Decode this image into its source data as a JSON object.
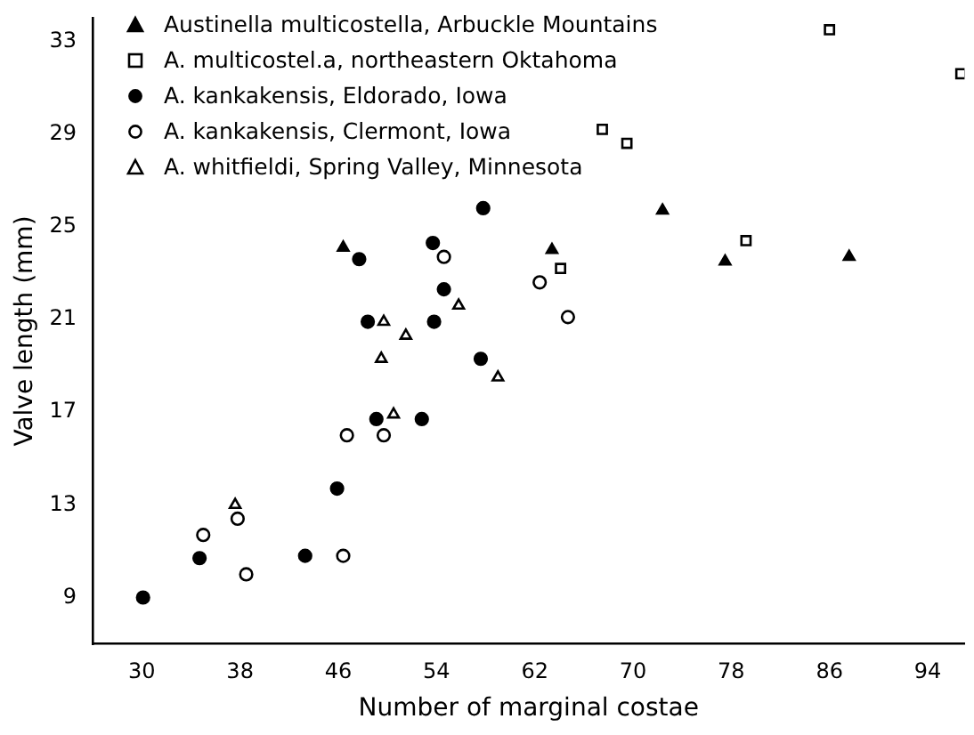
{
  "chart_data": {
    "type": "scatter",
    "xlabel": "Number of marginal costae",
    "ylabel": "Valve length (mm)",
    "xlim": [
      26,
      97
    ],
    "ylim": [
      7,
      34
    ],
    "xticks": [
      30,
      38,
      46,
      54,
      62,
      70,
      78,
      86,
      94
    ],
    "yticks": [
      9,
      13,
      17,
      21,
      25,
      29,
      33
    ],
    "grid": false,
    "legend": "top left",
    "series": [
      {
        "name": "Austinella multicostella, Arbuckle Mountains",
        "color": "#000000",
        "marker": "triangle",
        "x": [
          46.4,
          63.4,
          72.4,
          77.5,
          87.6
        ],
        "values": [
          24.1,
          24.0,
          25.7,
          23.5,
          23.7
        ]
      },
      {
        "name": "A. multicostel.a, northeastern Oktahoma",
        "color": "#000000",
        "marker": "square-open",
        "x": [
          86.0,
          96.7,
          67.5,
          69.5,
          79.2,
          64.1
        ],
        "values": [
          33.5,
          31.6,
          29.2,
          28.6,
          24.4,
          23.2
        ]
      },
      {
        "name": "A. kankakensis, Eldorado, Iowa",
        "color": "#000000",
        "marker": "circle",
        "x": [
          57.8,
          53.7,
          47.7,
          54.6,
          48.4,
          53.8,
          57.6,
          49.1,
          52.8,
          45.9,
          34.7,
          43.3,
          30.1
        ],
        "values": [
          25.8,
          24.3,
          23.6,
          22.3,
          20.9,
          20.9,
          19.3,
          16.7,
          16.7,
          13.7,
          10.7,
          10.8,
          9.0
        ]
      },
      {
        "name": "A. kankakensis, Clermont, Iowa",
        "color": "#000000",
        "marker": "circle-open",
        "x": [
          54.6,
          62.4,
          64.7,
          46.7,
          49.7,
          35.0,
          37.8,
          38.5,
          46.4
        ],
        "values": [
          23.7,
          22.6,
          21.1,
          16.0,
          16.0,
          11.7,
          12.4,
          10.0,
          10.8
        ]
      },
      {
        "name": "A. whitfieldi, Spring Valley, Minnesota",
        "color": "#000000",
        "marker": "triangle-open",
        "x": [
          55.8,
          49.7,
          51.5,
          49.5,
          59.0,
          50.5,
          37.6
        ],
        "values": [
          21.6,
          20.9,
          20.3,
          19.3,
          18.5,
          16.9,
          13.0
        ]
      }
    ]
  }
}
